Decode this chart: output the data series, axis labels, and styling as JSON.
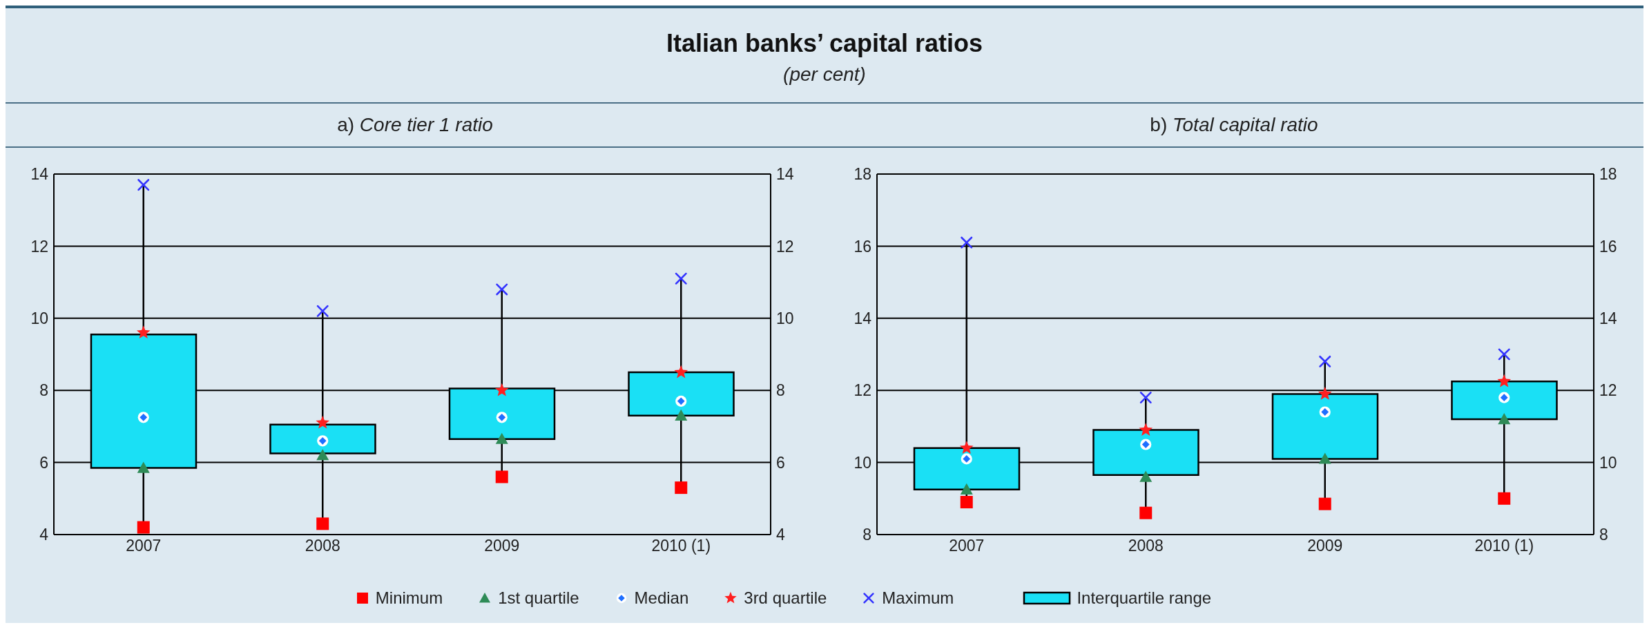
{
  "chart_data": [
    {
      "type": "scatter",
      "title": "Italian banks’ capital ratios",
      "subtitle": "(per cent)",
      "annotations": [
        "a) Core tier 1 ratio"
      ],
      "categories": [
        "2007",
        "2008",
        "2009",
        "2010 (1)"
      ],
      "ylim": [
        4,
        14
      ],
      "yticks": [
        4,
        6,
        8,
        10,
        12,
        14
      ],
      "y2lim": [
        4,
        14
      ],
      "y2ticks": [
        4,
        6,
        8,
        10,
        12,
        14
      ],
      "grid": "y",
      "legend": "bottom",
      "series": [
        {
          "type": "bar",
          "name": "Interquartile range",
          "color": "#1ae0f5",
          "base": [
            5.85,
            6.25,
            6.65,
            7.3
          ],
          "values": [
            3.7,
            0.8,
            1.4,
            1.2
          ]
        },
        {
          "name": "Minimum",
          "color": "#ff0000",
          "marker": "square",
          "values": [
            4.2,
            4.3,
            5.6,
            5.3
          ]
        },
        {
          "name": "1st quartile",
          "color": "#2e8b57",
          "marker": "triangle",
          "values": [
            5.85,
            6.2,
            6.65,
            7.3
          ]
        },
        {
          "name": "Median",
          "color": "#1e6fff",
          "marker": "diamond",
          "values": [
            7.25,
            6.6,
            7.25,
            7.7
          ]
        },
        {
          "name": "3rd quartile",
          "color": "#ff2020",
          "marker": "star",
          "values": [
            9.6,
            7.1,
            8.0,
            8.5
          ]
        },
        {
          "name": "Maximum",
          "color": "#3333ff",
          "marker": "cross",
          "values": [
            13.7,
            10.2,
            10.8,
            11.1
          ]
        }
      ]
    },
    {
      "type": "scatter",
      "annotations": [
        "b) Total capital ratio"
      ],
      "categories": [
        "2007",
        "2008",
        "2009",
        "2010 (1)"
      ],
      "ylim": [
        8,
        18
      ],
      "yticks": [
        8,
        10,
        12,
        14,
        16,
        18
      ],
      "y2lim": [
        8,
        18
      ],
      "y2ticks": [
        8,
        10,
        12,
        14,
        16,
        18
      ],
      "grid": "y",
      "series": [
        {
          "type": "bar",
          "color": "#1ae0f5",
          "base": [
            9.25,
            9.65,
            10.1,
            11.2
          ],
          "values": [
            1.15,
            1.25,
            1.8,
            1.05
          ]
        },
        {
          "color": "#ff0000",
          "marker": "square",
          "values": [
            8.9,
            8.6,
            8.85,
            9.0
          ]
        },
        {
          "color": "#2e8b57",
          "marker": "triangle",
          "values": [
            9.25,
            9.6,
            10.1,
            11.2
          ]
        },
        {
          "color": "#1e6fff",
          "marker": "diamond",
          "values": [
            10.1,
            10.5,
            11.4,
            11.8
          ]
        },
        {
          "color": "#ff2020",
          "marker": "star",
          "values": [
            10.4,
            10.9,
            11.9,
            12.25
          ]
        },
        {
          "color": "#3333ff",
          "marker": "cross",
          "values": [
            16.1,
            11.8,
            12.8,
            13.0
          ]
        }
      ]
    }
  ]
}
